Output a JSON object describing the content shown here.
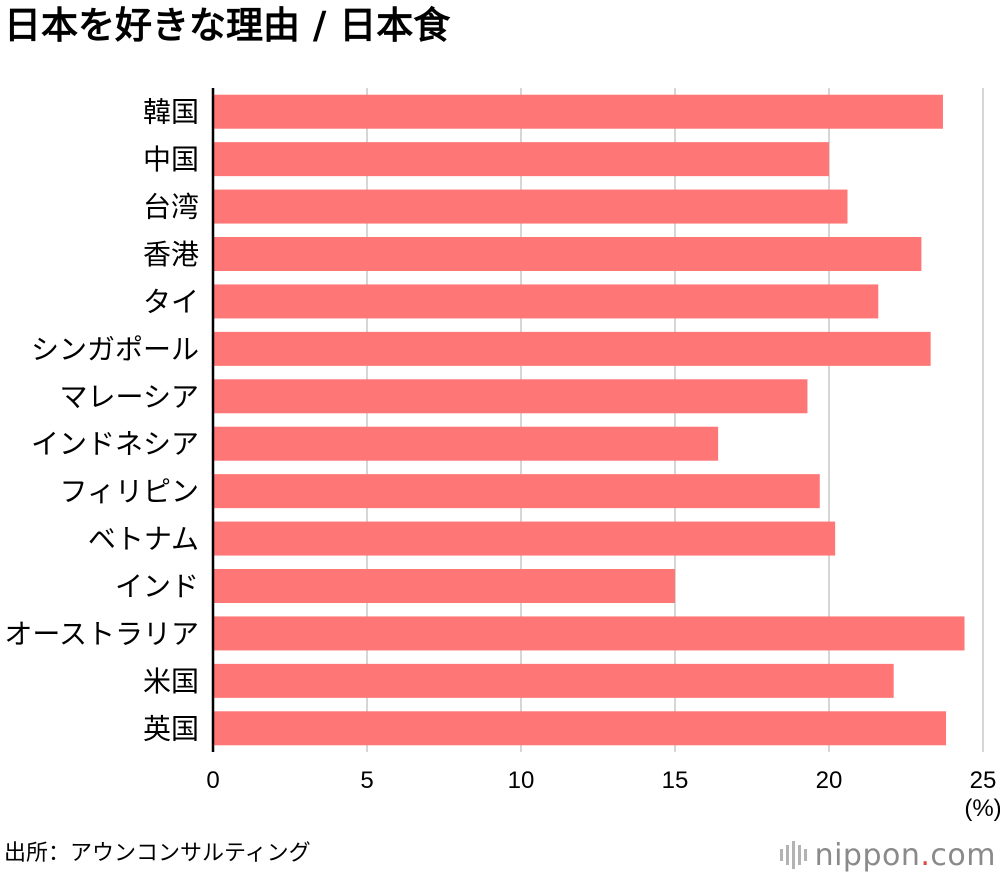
{
  "title": "日本を好きな理由 / 日本食",
  "source": "出所：アウンコンサルティング",
  "brand": {
    "name_main": "nippon",
    "name_dot": ".",
    "name_tld": "com",
    "dot_color": "#e04a3f"
  },
  "chart_data": {
    "type": "bar",
    "orientation": "horizontal",
    "title": "日本を好きな理由 / 日本食",
    "categories": [
      "韓国",
      "中国",
      "台湾",
      "香港",
      "タイ",
      "シンガポール",
      "マレーシア",
      "インドネシア",
      "フィリピン",
      "ベトナム",
      "インド",
      "オーストラリア",
      "米国",
      "英国"
    ],
    "values": [
      23.7,
      20.0,
      20.6,
      23.0,
      21.6,
      23.3,
      19.3,
      16.4,
      19.7,
      20.2,
      15.0,
      24.4,
      22.1,
      23.8
    ],
    "xlim": [
      0,
      25
    ],
    "xticks": [
      0,
      5,
      10,
      15,
      20,
      25
    ],
    "xunit": "(%)",
    "xlabel": "",
    "ylabel": "",
    "grid": true,
    "legend": "none",
    "bar_color": "#ff7676",
    "grid_color": "#c8c8c8"
  }
}
